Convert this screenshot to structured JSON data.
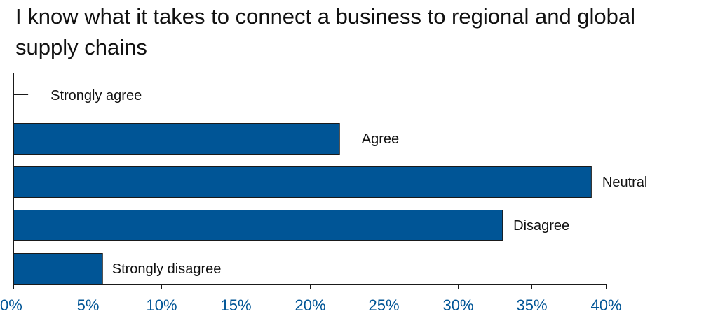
{
  "chart_data": {
    "type": "bar",
    "orientation": "horizontal",
    "title": "I know what it takes to connect a business to regional and global supply chains",
    "categories": [
      "Strongly agree",
      "Agree",
      "Neutral",
      "Disagree",
      "Strongly disagree"
    ],
    "values": [
      1,
      22,
      39,
      33,
      6
    ],
    "xlim": [
      0,
      40
    ],
    "xticks": [
      "0%",
      "5%",
      "10%",
      "15%",
      "20%",
      "25%",
      "30%",
      "35%",
      "40%"
    ],
    "grid": false,
    "legend": "none",
    "colors": {
      "bar": "#005596",
      "tick_label": "#005596"
    }
  }
}
